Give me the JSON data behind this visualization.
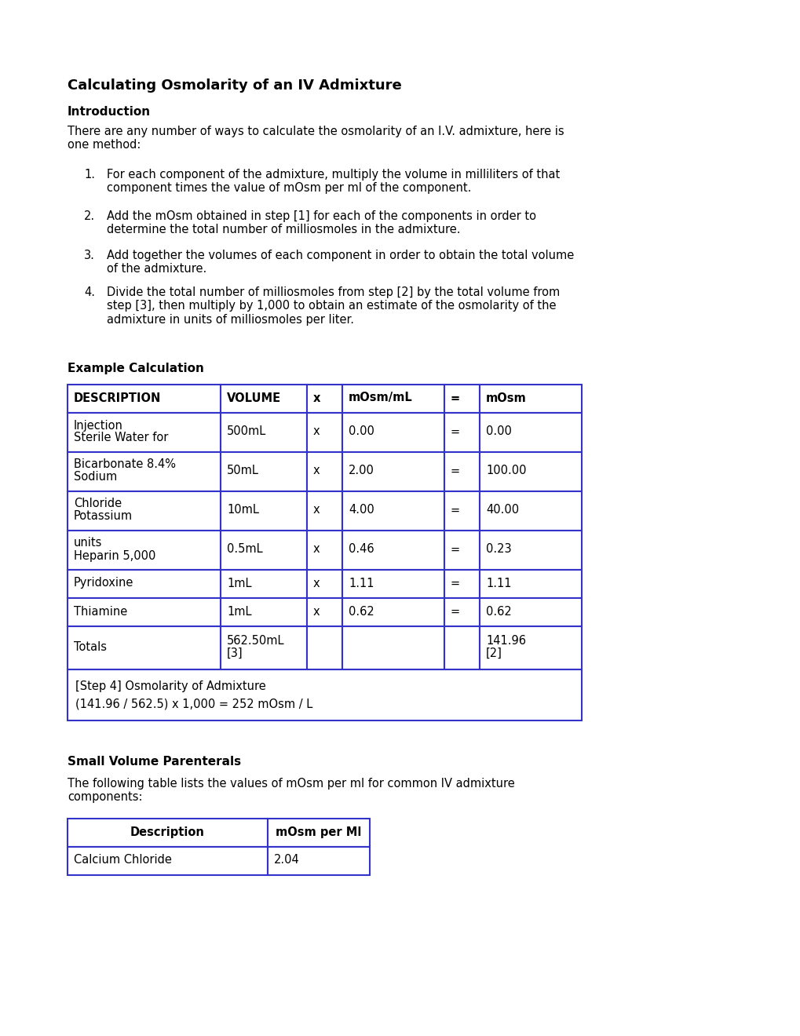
{
  "title": "Calculating Osmolarity of an IV Admixture",
  "intro_heading": "Introduction",
  "intro_text": "There are any number of ways to calculate the osmolarity of an I.V. admixture, here is\none method:",
  "steps": [
    "For each component of the admixture, multiply the volume in milliliters of that\ncomponent times the value of mOsm per ml of the component.",
    "Add the mOsm obtained in step [1] for each of the components in order to\ndetermine the total number of milliosmoles in the admixture.",
    "Add together the volumes of each component in order to obtain the total volume\nof the admixture.",
    "Divide the total number of milliosmoles from step [2] by the total volume from\nstep [3], then multiply by 1,000 to obtain an estimate of the osmolarity of the\nadmixture in units of milliosmoles per liter."
  ],
  "example_heading": "Example Calculation",
  "table_headers": [
    "DESCRIPTION",
    "VOLUME",
    "x",
    "mOsm/mL",
    "=",
    "mOsm"
  ],
  "table_rows": [
    [
      "Sterile Water for\nInjection",
      "500mL",
      "x",
      "0.00",
      "=",
      "0.00"
    ],
    [
      "Sodium\nBicarbonate 8.4%",
      "50mL",
      "x",
      "2.00",
      "=",
      "100.00"
    ],
    [
      "Potassium\nChloride",
      "10mL",
      "x",
      "4.00",
      "=",
      "40.00"
    ],
    [
      "Heparin 5,000\nunits",
      "0.5mL",
      "x",
      "0.46",
      "=",
      "0.23"
    ],
    [
      "Pyridoxine",
      "1mL",
      "x",
      "1.11",
      "=",
      "1.11"
    ],
    [
      "Thiamine",
      "1mL",
      "x",
      "0.62",
      "=",
      "0.62"
    ],
    [
      "Totals",
      "[3]\n562.50mL",
      "",
      "",
      "",
      "[2]\n141.96"
    ]
  ],
  "step4_line1": "[Step 4] Osmolarity of Admixture",
  "step4_line2": "(141.96 / 562.5) x 1,000 = 252 mOsm / L",
  "svp_heading": "Small Volume Parenterals",
  "svp_text": "The following table lists the values of mOsm per ml for common IV admixture\ncomponents:",
  "svp_headers": [
    "Description",
    "mOsm per Ml"
  ],
  "svp_rows": [
    [
      "Calcium Chloride",
      "2.04"
    ]
  ],
  "border_color": "#3333cc",
  "text_color": "#000000",
  "font_size": 10.5,
  "title_font_size": 13,
  "heading_font_size": 11
}
